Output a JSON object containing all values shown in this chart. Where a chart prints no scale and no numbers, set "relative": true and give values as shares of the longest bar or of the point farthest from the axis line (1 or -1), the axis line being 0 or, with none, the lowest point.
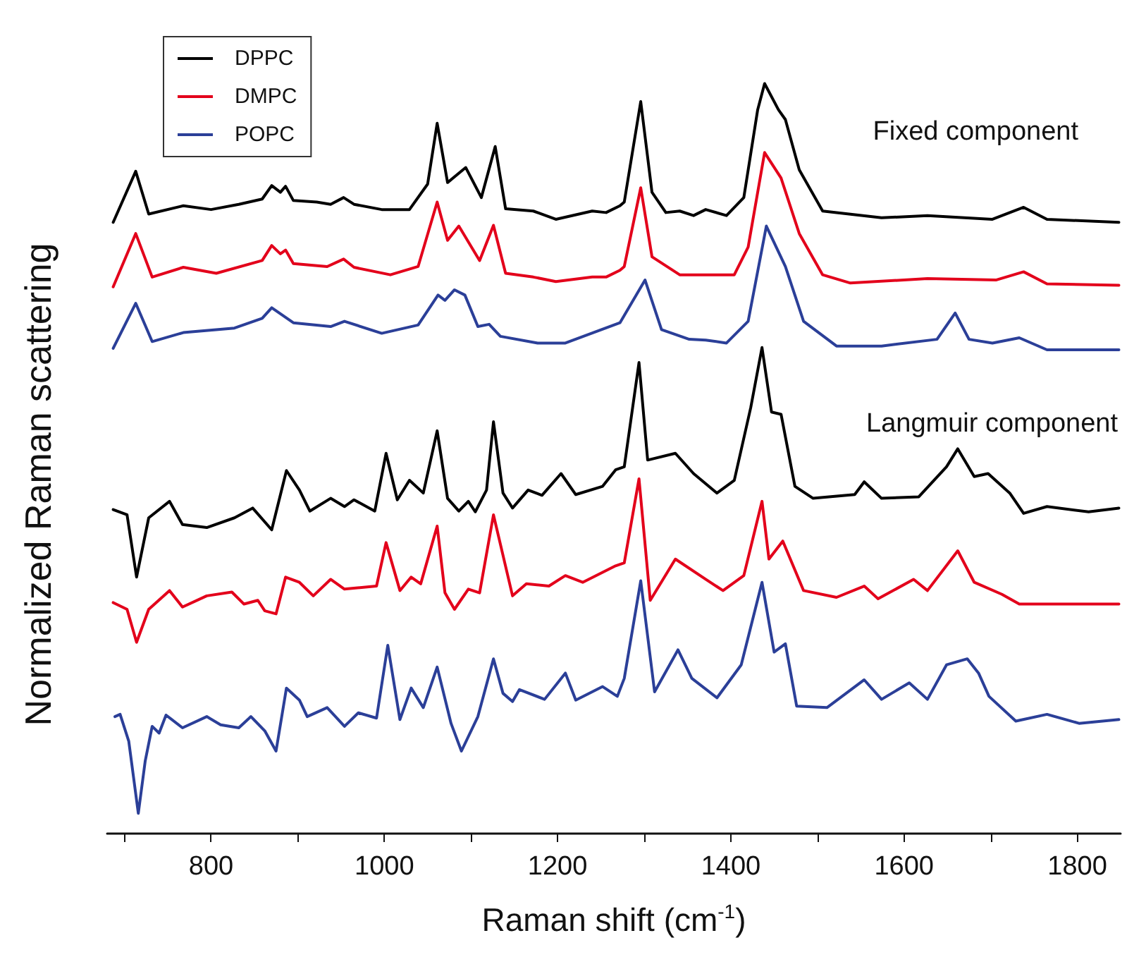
{
  "chart_data": {
    "type": "line",
    "relative": true,
    "xlabel": "Raman shift (cm$^{-1}$)",
    "ylabel": "Normalized Raman scattering",
    "xlim": [
      680,
      1850
    ],
    "xticks": [
      {
        "value": 700,
        "label": null
      },
      800,
      {
        "value": 900,
        "label": null
      },
      1000,
      {
        "value": 1100,
        "label": null
      },
      1200,
      {
        "value": 1300,
        "label": null
      },
      1400,
      {
        "value": 1500,
        "label": null
      },
      1600,
      {
        "value": 1700,
        "label": null
      },
      1800
    ],
    "grid": false,
    "legend": "top left",
    "marker": "none",
    "line_style": "solid",
    "annotations": [
      "Fixed component",
      "Langmuir component"
    ],
    "series": [
      {
        "name": "DPPC",
        "color": "#000000",
        "x": [
          687,
          713,
          728,
          768,
          800,
          832,
          859,
          870,
          880,
          886,
          895,
          922,
          938,
          953,
          965,
          997,
          1029,
          1050,
          1061,
          1073,
          1094,
          1112,
          1128,
          1140,
          1172,
          1198,
          1240,
          1256,
          1272,
          1277,
          1296,
          1309,
          1325,
          1341,
          1357,
          1371,
          1395,
          1415,
          1431,
          1439,
          1455,
          1463,
          1479,
          1506,
          1574,
          1627,
          1702,
          1738,
          1765,
          1848
        ],
        "values": [
          0.815,
          0.883,
          0.826,
          0.837,
          0.832,
          0.839,
          0.846,
          0.864,
          0.855,
          0.863,
          0.844,
          0.842,
          0.839,
          0.848,
          0.839,
          0.832,
          0.832,
          0.866,
          0.947,
          0.868,
          0.888,
          0.848,
          0.916,
          0.833,
          0.83,
          0.819,
          0.83,
          0.828,
          0.837,
          0.842,
          0.976,
          0.855,
          0.828,
          0.83,
          0.824,
          0.832,
          0.824,
          0.848,
          0.965,
          1.0,
          0.965,
          0.952,
          0.885,
          0.83,
          0.821,
          0.824,
          0.819,
          0.835,
          0.819,
          0.815
        ]
      },
      {
        "name": "DMPC",
        "color": "#e3001b",
        "x": [
          687,
          713,
          732,
          768,
          806,
          859,
          870,
          880,
          886,
          895,
          934,
          953,
          965,
          1007,
          1039,
          1061,
          1073,
          1086,
          1110,
          1126,
          1140,
          1172,
          1198,
          1240,
          1256,
          1272,
          1277,
          1296,
          1309,
          1341,
          1371,
          1404,
          1420,
          1439,
          1458,
          1479,
          1506,
          1538,
          1627,
          1706,
          1738,
          1765,
          1848
        ],
        "values": [
          0.729,
          0.8,
          0.742,
          0.755,
          0.747,
          0.764,
          0.784,
          0.773,
          0.778,
          0.76,
          0.756,
          0.766,
          0.755,
          0.745,
          0.756,
          0.842,
          0.791,
          0.81,
          0.764,
          0.811,
          0.747,
          0.742,
          0.736,
          0.742,
          0.742,
          0.751,
          0.756,
          0.861,
          0.769,
          0.745,
          0.745,
          0.745,
          0.782,
          0.908,
          0.874,
          0.8,
          0.745,
          0.734,
          0.74,
          0.738,
          0.749,
          0.733,
          0.731
        ]
      },
      {
        "name": "POPC",
        "color": "#2b3f98",
        "x": [
          687,
          713,
          732,
          768,
          827,
          859,
          870,
          895,
          938,
          954,
          997,
          1039,
          1062,
          1070,
          1081,
          1093,
          1108,
          1121,
          1134,
          1177,
          1209,
          1272,
          1301,
          1320,
          1352,
          1371,
          1395,
          1420,
          1441,
          1463,
          1484,
          1522,
          1574,
          1638,
          1659,
          1675,
          1702,
          1733,
          1765,
          1848
        ],
        "values": [
          0.647,
          0.707,
          0.656,
          0.668,
          0.674,
          0.687,
          0.701,
          0.681,
          0.676,
          0.683,
          0.667,
          0.678,
          0.718,
          0.711,
          0.725,
          0.718,
          0.676,
          0.679,
          0.663,
          0.654,
          0.654,
          0.681,
          0.738,
          0.672,
          0.659,
          0.658,
          0.654,
          0.683,
          0.81,
          0.756,
          0.683,
          0.65,
          0.65,
          0.659,
          0.694,
          0.659,
          0.654,
          0.661,
          0.645,
          0.645
        ]
      },
      {
        "color": "#000000",
        "x": [
          687,
          703,
          714,
          728,
          752,
          767,
          795,
          827,
          848,
          870,
          887,
          902,
          914,
          938,
          954,
          965,
          989,
          1002,
          1015,
          1029,
          1045,
          1061,
          1073,
          1086,
          1097,
          1105,
          1118,
          1126,
          1137,
          1148,
          1166,
          1182,
          1204,
          1221,
          1252,
          1267,
          1277,
          1294,
          1304,
          1336,
          1357,
          1384,
          1404,
          1423,
          1436,
          1447,
          1458,
          1474,
          1495,
          1543,
          1554,
          1574,
          1617,
          1649,
          1662,
          1681,
          1697,
          1722,
          1738,
          1765,
          1813,
          1848
        ],
        "values": [
          0.432,
          0.425,
          0.342,
          0.421,
          0.443,
          0.412,
          0.408,
          0.421,
          0.434,
          0.405,
          0.484,
          0.458,
          0.43,
          0.447,
          0.436,
          0.445,
          0.43,
          0.507,
          0.445,
          0.471,
          0.454,
          0.537,
          0.447,
          0.43,
          0.443,
          0.429,
          0.458,
          0.549,
          0.454,
          0.434,
          0.458,
          0.451,
          0.48,
          0.452,
          0.463,
          0.485,
          0.489,
          0.628,
          0.498,
          0.507,
          0.48,
          0.454,
          0.471,
          0.568,
          0.648,
          0.562,
          0.559,
          0.463,
          0.447,
          0.452,
          0.469,
          0.447,
          0.449,
          0.489,
          0.513,
          0.476,
          0.48,
          0.454,
          0.427,
          0.436,
          0.429,
          0.434
        ]
      },
      {
        "color": "#e3001b",
        "x": [
          687,
          703,
          714,
          728,
          752,
          767,
          795,
          824,
          838,
          854,
          862,
          875,
          886,
          902,
          918,
          938,
          954,
          991,
          1002,
          1018,
          1031,
          1042,
          1061,
          1070,
          1081,
          1097,
          1110,
          1126,
          1148,
          1164,
          1190,
          1209,
          1229,
          1267,
          1277,
          1294,
          1307,
          1336,
          1371,
          1391,
          1415,
          1436,
          1444,
          1460,
          1484,
          1522,
          1554,
          1570,
          1611,
          1627,
          1662,
          1681,
          1713,
          1733,
          1786,
          1848
        ],
        "values": [
          0.308,
          0.299,
          0.255,
          0.299,
          0.324,
          0.302,
          0.317,
          0.322,
          0.306,
          0.311,
          0.297,
          0.293,
          0.342,
          0.335,
          0.317,
          0.339,
          0.326,
          0.33,
          0.388,
          0.324,
          0.342,
          0.333,
          0.41,
          0.321,
          0.299,
          0.326,
          0.321,
          0.425,
          0.317,
          0.333,
          0.33,
          0.344,
          0.335,
          0.357,
          0.361,
          0.473,
          0.311,
          0.366,
          0.339,
          0.324,
          0.344,
          0.443,
          0.366,
          0.39,
          0.324,
          0.315,
          0.33,
          0.313,
          0.339,
          0.324,
          0.377,
          0.335,
          0.319,
          0.306,
          0.306,
          0.306
        ]
      },
      {
        "color": "#2b3f98",
        "x": [
          689,
          695,
          705,
          716,
          724,
          732,
          740,
          748,
          767,
          795,
          811,
          832,
          846,
          862,
          875,
          887,
          902,
          911,
          934,
          954,
          970,
          991,
          1004,
          1018,
          1031,
          1045,
          1061,
          1077,
          1089,
          1108,
          1126,
          1137,
          1148,
          1156,
          1185,
          1209,
          1221,
          1252,
          1269,
          1277,
          1296,
          1312,
          1339,
          1355,
          1384,
          1412,
          1436,
          1450,
          1463,
          1476,
          1511,
          1554,
          1574,
          1606,
          1627,
          1649,
          1673,
          1686,
          1698,
          1729,
          1765,
          1802,
          1848
        ],
        "values": [
          0.156,
          0.159,
          0.123,
          0.027,
          0.097,
          0.143,
          0.134,
          0.158,
          0.141,
          0.156,
          0.145,
          0.141,
          0.156,
          0.137,
          0.11,
          0.194,
          0.178,
          0.156,
          0.168,
          0.143,
          0.161,
          0.154,
          0.251,
          0.152,
          0.194,
          0.168,
          0.222,
          0.147,
          0.11,
          0.156,
          0.233,
          0.187,
          0.176,
          0.192,
          0.179,
          0.214,
          0.178,
          0.196,
          0.183,
          0.207,
          0.337,
          0.189,
          0.245,
          0.207,
          0.181,
          0.225,
          0.335,
          0.242,
          0.253,
          0.17,
          0.168,
          0.205,
          0.179,
          0.201,
          0.179,
          0.225,
          0.233,
          0.214,
          0.183,
          0.15,
          0.159,
          0.147,
          0.152
        ]
      }
    ]
  }
}
